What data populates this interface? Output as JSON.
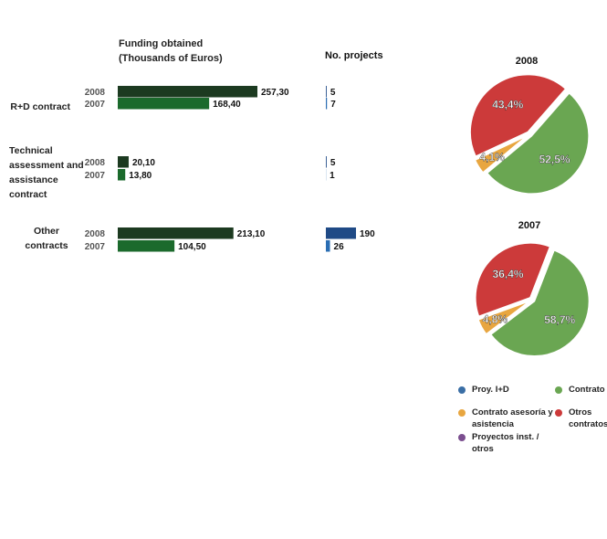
{
  "chart_data": [
    {
      "type": "hbar",
      "title": "Funding obtained (Thousands of Euros)",
      "categories": [
        "R+D contract",
        "Technical assessment and assistance contract",
        "Other contracts"
      ],
      "series": [
        {
          "name": "2008",
          "color": "#1c3a20",
          "values": [
            257.3,
            20.1,
            213.1
          ],
          "value_labels": [
            "257,30",
            "20,10",
            "213,10"
          ]
        },
        {
          "name": "2007",
          "color": "#1b6a2c",
          "values": [
            168.4,
            13.8,
            104.5
          ],
          "value_labels": [
            "168,40",
            "13,80",
            "104,50"
          ]
        }
      ]
    },
    {
      "type": "hbar",
      "title": "No. projects",
      "series": [
        {
          "name": "2008",
          "color": "#1f4a86",
          "values": [
            5,
            5,
            190
          ]
        },
        {
          "name": "2007",
          "color": "#2a6db3",
          "values": [
            7,
            1,
            26
          ]
        }
      ]
    },
    {
      "type": "pie",
      "title": "2008",
      "values": [
        43.4,
        52.5,
        4.1
      ],
      "value_labels": [
        "43,4%",
        "52,5%",
        "4,1%"
      ],
      "colors": [
        "#cc3a3a",
        "#6aa652",
        "#e8a640"
      ]
    },
    {
      "type": "pie",
      "title": "2007",
      "values": [
        36.4,
        58.7,
        4.8
      ],
      "value_labels": [
        "36,4%",
        "58,7%",
        "4,8%"
      ],
      "colors": [
        "#cc3a3a",
        "#6aa652",
        "#e8a640"
      ]
    }
  ],
  "legend": [
    {
      "label": "Proy. I+D",
      "color": "#3a6ea5"
    },
    {
      "label": "Contrato",
      "color": "#6aa652"
    },
    {
      "label": "Contrato asesoría y asistencia",
      "color": "#e8a640"
    },
    {
      "label": "Otros contratos",
      "color": "#cc3a3a"
    },
    {
      "label": "Proyectos inst. / otros",
      "color": "#7b4e8f"
    }
  ]
}
